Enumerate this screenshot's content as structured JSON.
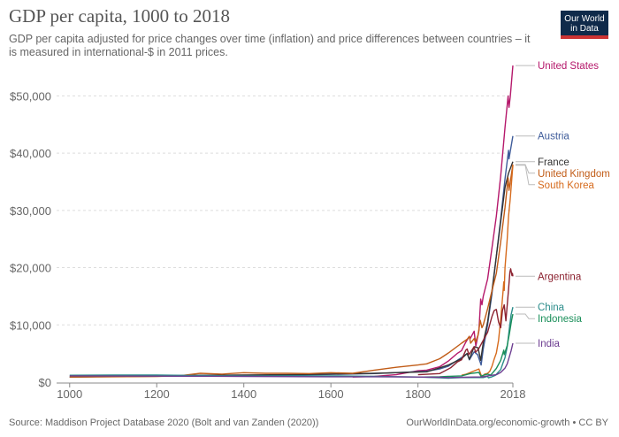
{
  "header": {
    "title": "GDP per capita, 1000 to 2018",
    "subtitle": "GDP per capita adjusted for price changes over time (inflation) and price differences between countries – it is measured in international-$ in 2011 prices.",
    "logo_line1": "Our World",
    "logo_line2": "in Data"
  },
  "footer": {
    "source": "Source: Maddison Project Database 2020 (Bolt and van Zanden (2020))",
    "license": "OurWorldInData.org/economic-growth • CC BY"
  },
  "colors": {
    "grid": "#dddddd",
    "axis": "#888888",
    "tick_text": "#666666",
    "logo_bg": "#0f2a4a",
    "logo_accent": "#cc3333"
  },
  "chart_data": {
    "type": "line",
    "title": "GDP per capita, 1000 to 2018",
    "xlabel": "",
    "ylabel": "",
    "xlim": [
      970,
      2018
    ],
    "ylim": [
      0,
      55000
    ],
    "grid": true,
    "legend": "right, labels at line ends",
    "x_ticks": [
      1000,
      1200,
      1400,
      1600,
      1800,
      2018
    ],
    "x_tick_labels": [
      "1000",
      "1200",
      "1400",
      "1600",
      "1800",
      "2018"
    ],
    "y_ticks": [
      0,
      10000,
      20000,
      30000,
      40000,
      50000
    ],
    "y_tick_labels": [
      "$0",
      "$10,000",
      "$20,000",
      "$30,000",
      "$40,000",
      "$50,000"
    ],
    "series": [
      {
        "name": "United States",
        "color": "#b5186b",
        "points": [
          [
            1650,
            900
          ],
          [
            1700,
            1000
          ],
          [
            1750,
            1300
          ],
          [
            1800,
            2000
          ],
          [
            1820,
            2100
          ],
          [
            1850,
            2700
          ],
          [
            1870,
            3700
          ],
          [
            1890,
            5000
          ],
          [
            1900,
            5500
          ],
          [
            1910,
            7000
          ],
          [
            1918,
            8000
          ],
          [
            1920,
            7600
          ],
          [
            1929,
            8900
          ],
          [
            1933,
            6300
          ],
          [
            1940,
            9000
          ],
          [
            1944,
            14500
          ],
          [
            1947,
            13500
          ],
          [
            1950,
            15000
          ],
          [
            1960,
            18000
          ],
          [
            1970,
            23500
          ],
          [
            1980,
            29000
          ],
          [
            1990,
            36000
          ],
          [
            2000,
            44500
          ],
          [
            2007,
            50000
          ],
          [
            2009,
            48000
          ],
          [
            2012,
            49800
          ],
          [
            2018,
            55300
          ]
        ]
      },
      {
        "name": "Austria",
        "color": "#3f5c9a",
        "points": [
          [
            1000,
            900
          ],
          [
            1300,
            1100
          ],
          [
            1500,
            1200
          ],
          [
            1700,
            1500
          ],
          [
            1820,
            1900
          ],
          [
            1850,
            2300
          ],
          [
            1870,
            2800
          ],
          [
            1900,
            4300
          ],
          [
            1913,
            5000
          ],
          [
            1918,
            3900
          ],
          [
            1929,
            5300
          ],
          [
            1937,
            4800
          ],
          [
            1945,
            3000
          ],
          [
            1950,
            5800
          ],
          [
            1960,
            10000
          ],
          [
            1970,
            15500
          ],
          [
            1980,
            22000
          ],
          [
            1990,
            28500
          ],
          [
            2000,
            35500
          ],
          [
            2008,
            40500
          ],
          [
            2009,
            39000
          ],
          [
            2018,
            43000
          ]
        ]
      },
      {
        "name": "France",
        "color": "#333333",
        "points": [
          [
            1000,
            900
          ],
          [
            1300,
            1200
          ],
          [
            1500,
            1300
          ],
          [
            1700,
            1550
          ],
          [
            1820,
            1800
          ],
          [
            1850,
            2500
          ],
          [
            1870,
            3000
          ],
          [
            1900,
            4100
          ],
          [
            1913,
            5000
          ],
          [
            1918,
            4000
          ],
          [
            1929,
            6200
          ],
          [
            1938,
            6000
          ],
          [
            1944,
            3800
          ],
          [
            1950,
            6900
          ],
          [
            1960,
            10500
          ],
          [
            1970,
            16000
          ],
          [
            1980,
            22000
          ],
          [
            1990,
            28000
          ],
          [
            2000,
            34000
          ],
          [
            2008,
            36500
          ],
          [
            2018,
            38500
          ]
        ]
      },
      {
        "name": "United Kingdom",
        "color": "#c15c17",
        "points": [
          [
            1000,
            900
          ],
          [
            1100,
            950
          ],
          [
            1200,
            1000
          ],
          [
            1250,
            1100
          ],
          [
            1300,
            1550
          ],
          [
            1350,
            1400
          ],
          [
            1400,
            1650
          ],
          [
            1450,
            1550
          ],
          [
            1500,
            1550
          ],
          [
            1550,
            1500
          ],
          [
            1600,
            1650
          ],
          [
            1650,
            1550
          ],
          [
            1700,
            2100
          ],
          [
            1750,
            2600
          ],
          [
            1800,
            3000
          ],
          [
            1820,
            3200
          ],
          [
            1850,
            4100
          ],
          [
            1870,
            5100
          ],
          [
            1900,
            6800
          ],
          [
            1913,
            7500
          ],
          [
            1918,
            8000
          ],
          [
            1921,
            6800
          ],
          [
            1929,
            7600
          ],
          [
            1932,
            7000
          ],
          [
            1938,
            8200
          ],
          [
            1943,
            10800
          ],
          [
            1947,
            9500
          ],
          [
            1950,
            10000
          ],
          [
            1960,
            12800
          ],
          [
            1970,
            16000
          ],
          [
            1980,
            19000
          ],
          [
            1990,
            24500
          ],
          [
            2000,
            30500
          ],
          [
            2007,
            35700
          ],
          [
            2009,
            33500
          ],
          [
            2018,
            38000
          ]
        ]
      },
      {
        "name": "South Korea",
        "color": "#d66b1d",
        "points": [
          [
            1900,
            1200
          ],
          [
            1911,
            1400
          ],
          [
            1940,
            2300
          ],
          [
            1945,
            1200
          ],
          [
            1950,
            1100
          ],
          [
            1953,
            1400
          ],
          [
            1960,
            1550
          ],
          [
            1965,
            1900
          ],
          [
            1970,
            2800
          ],
          [
            1975,
            4000
          ],
          [
            1980,
            5100
          ],
          [
            1985,
            7300
          ],
          [
            1990,
            11000
          ],
          [
            1995,
            15500
          ],
          [
            1997,
            17500
          ],
          [
            1998,
            16000
          ],
          [
            2000,
            20000
          ],
          [
            2005,
            25000
          ],
          [
            2008,
            29000
          ],
          [
            2012,
            32000
          ],
          [
            2015,
            35000
          ],
          [
            2018,
            37900
          ]
        ]
      },
      {
        "name": "Argentina",
        "color": "#8c2331",
        "points": [
          [
            1800,
            1300
          ],
          [
            1850,
            1500
          ],
          [
            1875,
            2500
          ],
          [
            1890,
            3500
          ],
          [
            1900,
            3900
          ],
          [
            1910,
            5600
          ],
          [
            1913,
            5800
          ],
          [
            1917,
            4800
          ],
          [
            1929,
            6200
          ],
          [
            1932,
            5200
          ],
          [
            1940,
            5900
          ],
          [
            1950,
            7300
          ],
          [
            1960,
            8700
          ],
          [
            1970,
            11500
          ],
          [
            1975,
            12500
          ],
          [
            1980,
            12700
          ],
          [
            1985,
            10500
          ],
          [
            1990,
            9500
          ],
          [
            1994,
            12500
          ],
          [
            1998,
            13500
          ],
          [
            2002,
            10700
          ],
          [
            2008,
            16200
          ],
          [
            2011,
            19200
          ],
          [
            2013,
            19800
          ],
          [
            2016,
            18600
          ],
          [
            2017,
            19000
          ],
          [
            2018,
            18500
          ]
        ]
      },
      {
        "name": "China",
        "color": "#2a8c8a",
        "points": [
          [
            1000,
            1200
          ],
          [
            1100,
            1250
          ],
          [
            1200,
            1250
          ],
          [
            1300,
            1150
          ],
          [
            1400,
            1100
          ],
          [
            1500,
            1100
          ],
          [
            1600,
            1100
          ],
          [
            1700,
            1000
          ],
          [
            1800,
            900
          ],
          [
            1850,
            750
          ],
          [
            1870,
            700
          ],
          [
            1900,
            800
          ],
          [
            1930,
            800
          ],
          [
            1950,
            800
          ],
          [
            1960,
            1000
          ],
          [
            1962,
            750
          ],
          [
            1970,
            950
          ],
          [
            1978,
            1200
          ],
          [
            1985,
            1800
          ],
          [
            1990,
            2200
          ],
          [
            1995,
            3300
          ],
          [
            2000,
            4300
          ],
          [
            2005,
            6200
          ],
          [
            2010,
            9500
          ],
          [
            2014,
            11800
          ],
          [
            2018,
            13100
          ]
        ]
      },
      {
        "name": "Indonesia",
        "color": "#1a8f5a",
        "points": [
          [
            1815,
            900
          ],
          [
            1850,
            950
          ],
          [
            1870,
            1000
          ],
          [
            1900,
            1100
          ],
          [
            1920,
            1500
          ],
          [
            1940,
            1700
          ],
          [
            1945,
            1000
          ],
          [
            1950,
            1200
          ],
          [
            1960,
            1400
          ],
          [
            1967,
            1250
          ],
          [
            1970,
            1500
          ],
          [
            1980,
            2400
          ],
          [
            1990,
            3800
          ],
          [
            1997,
            5600
          ],
          [
            1998,
            4800
          ],
          [
            2000,
            5200
          ],
          [
            2005,
            6400
          ],
          [
            2010,
            8500
          ],
          [
            2015,
            10800
          ],
          [
            2018,
            11900
          ]
        ]
      },
      {
        "name": "India",
        "color": "#6d3e91",
        "points": [
          [
            1000,
            1100
          ],
          [
            1200,
            1050
          ],
          [
            1400,
            1000
          ],
          [
            1600,
            950
          ],
          [
            1700,
            950
          ],
          [
            1800,
            900
          ],
          [
            1850,
            850
          ],
          [
            1870,
            800
          ],
          [
            1900,
            850
          ],
          [
            1930,
            900
          ],
          [
            1947,
            900
          ],
          [
            1950,
            950
          ],
          [
            1960,
            1100
          ],
          [
            1970,
            1200
          ],
          [
            1980,
            1300
          ],
          [
            1990,
            1700
          ],
          [
            2000,
            2450
          ],
          [
            2005,
            3200
          ],
          [
            2010,
            4500
          ],
          [
            2014,
            5500
          ],
          [
            2018,
            6800
          ]
        ]
      }
    ]
  }
}
